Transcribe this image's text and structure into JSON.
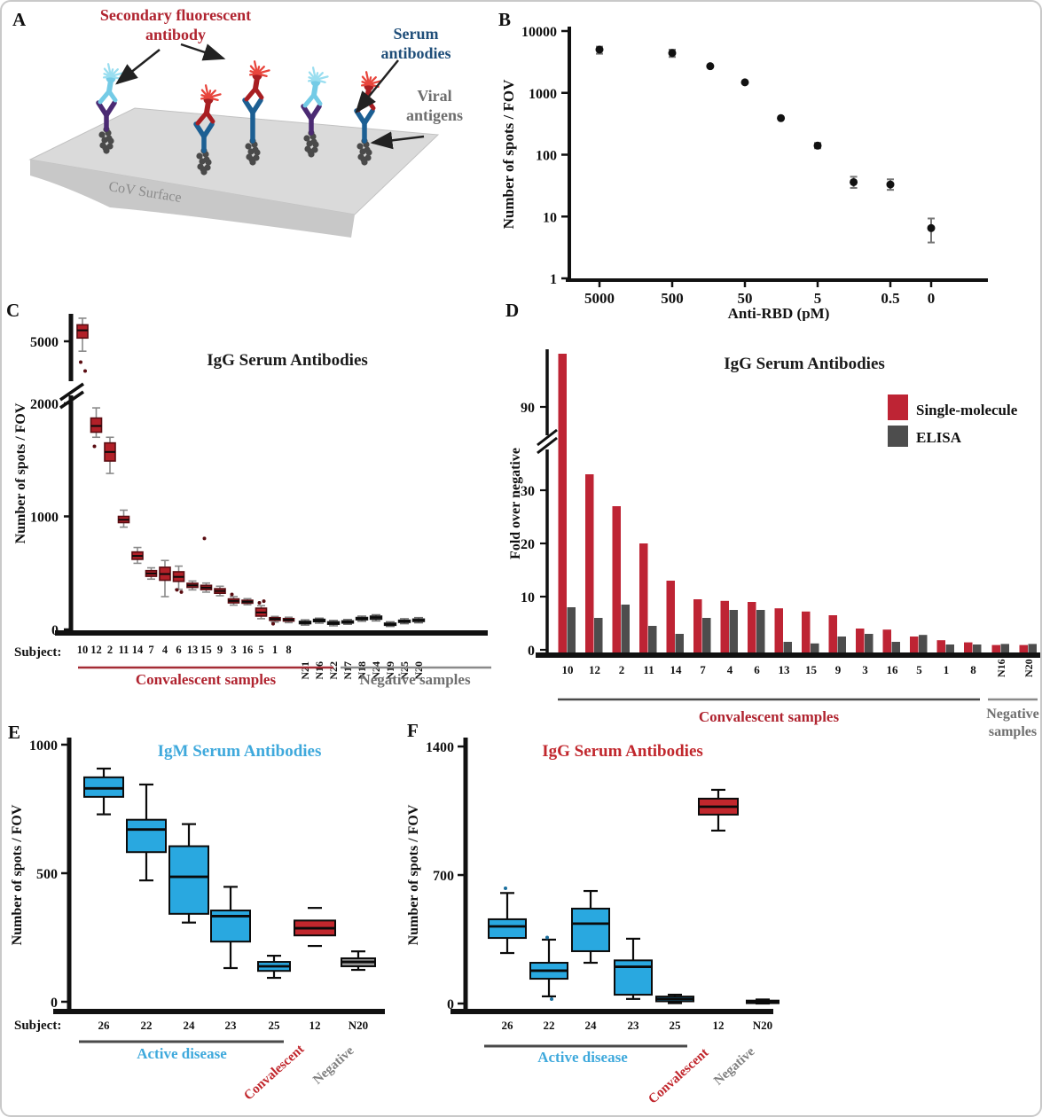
{
  "figure_border_color": "#c9c9c9",
  "panel_labels": {
    "a": "A",
    "b": "B",
    "c": "C",
    "d": "D",
    "e": "E",
    "f": "F"
  },
  "panel_a": {
    "secondary_label_line1": "Secondary fluorescent",
    "secondary_label_line2": "antibody",
    "serum_label_line1": "Serum",
    "serum_label_line2": "antibodies",
    "viral_label_line1": "Viral",
    "viral_label_line2": "antigens",
    "surface_label": "CoV Surface",
    "colors": {
      "secondary_label": "#b02430",
      "serum_label": "#1f4e79",
      "viral_label": "#6e6e6e",
      "surface_label": "#8b8b8b",
      "secondary_red": "#a81e22",
      "star_red": "#e8453c",
      "secondary_cyan": "#74cbe6",
      "star_cyan": "#9adef0",
      "serum_purple": "#4b2a73",
      "serum_blue": "#1c5f93",
      "antigen": "#4a4a4a",
      "surface_top": "#dadada",
      "surface_front": "#c8c8c8",
      "arrow": "#222222"
    }
  },
  "chart_data": [
    {
      "id": "B",
      "type": "scatter",
      "xlabel": "Anti-RBD (pM)",
      "ylabel": "Number of spots / FOV",
      "x_scale": "log-with-zero",
      "y_scale": "log",
      "ylim": [
        1,
        10000
      ],
      "x_ticks": [
        {
          "v": 5000,
          "t": "5000"
        },
        {
          "v": 500,
          "t": "500"
        },
        {
          "v": 50,
          "t": "50"
        },
        {
          "v": 5,
          "t": "5"
        },
        {
          "v": 0.5,
          "t": "0.5"
        },
        {
          "v": 0,
          "t": "0"
        }
      ],
      "y_ticks": [
        {
          "v": 10000,
          "t": "10000"
        },
        {
          "v": 1000,
          "t": "1000"
        },
        {
          "v": 100,
          "t": "100"
        },
        {
          "v": 10,
          "t": "10"
        },
        {
          "v": 1,
          "t": "1"
        }
      ],
      "points": [
        {
          "x": 5000,
          "y": 5000,
          "lo": 4300,
          "hi": 5600
        },
        {
          "x": 500,
          "y": 4400,
          "lo": 3800,
          "hi": 5000
        },
        {
          "x": 150,
          "y": 2700,
          "lo": 2550,
          "hi": 2850
        },
        {
          "x": 50,
          "y": 1480,
          "lo": 1400,
          "hi": 1560
        },
        {
          "x": 16,
          "y": 390,
          "lo": 360,
          "hi": 420
        },
        {
          "x": 5,
          "y": 140,
          "lo": 127,
          "hi": 155
        },
        {
          "x": 1.6,
          "y": 36,
          "lo": 29,
          "hi": 44
        },
        {
          "x": 0.5,
          "y": 33,
          "lo": 27,
          "hi": 40
        },
        {
          "x": 0,
          "y": 6.5,
          "lo": 3.8,
          "hi": 9.3
        }
      ],
      "point_color": "#111111",
      "errorbar_color": "#777777"
    },
    {
      "id": "C",
      "type": "box",
      "title": "IgG Serum Antibodies",
      "title_color": "#1a1a1a",
      "ylabel": "Number of spots / FOV",
      "subject_prefix": "Subject:",
      "axis_break": true,
      "y_ticks": [
        {
          "v": 5000,
          "t": "5000"
        },
        {
          "v": 2000,
          "t": "2000"
        },
        {
          "v": 1000,
          "t": "1000"
        },
        {
          "v": 0,
          "t": "0"
        }
      ],
      "group_labels": [
        {
          "text": "Convalescent samples",
          "color": "#b02430"
        },
        {
          "text": "Negative samples",
          "color": "#6f6f6f"
        }
      ],
      "box_colors": {
        "convalescent": "#b22028",
        "negative": "#3c3c3c"
      },
      "boxes": [
        {
          "s": "10",
          "g": 0,
          "med": 5100,
          "q1": 5030,
          "q3": 5150,
          "lo": 4910,
          "hi": 5210,
          "out": [
            4810,
            4730
          ]
        },
        {
          "s": "12",
          "g": 0,
          "med": 1800,
          "q1": 1745,
          "q3": 1870,
          "lo": 1700,
          "hi": 1960,
          "out": [
            1620
          ]
        },
        {
          "s": "2",
          "g": 0,
          "med": 1570,
          "q1": 1490,
          "q3": 1650,
          "lo": 1380,
          "hi": 1700
        },
        {
          "s": "11",
          "g": 0,
          "med": 970,
          "q1": 945,
          "q3": 1000,
          "lo": 905,
          "hi": 1055
        },
        {
          "s": "14",
          "g": 0,
          "med": 650,
          "q1": 620,
          "q3": 685,
          "lo": 585,
          "hi": 725
        },
        {
          "s": "7",
          "g": 0,
          "med": 495,
          "q1": 470,
          "q3": 520,
          "lo": 445,
          "hi": 545
        },
        {
          "s": "4",
          "g": 0,
          "med": 490,
          "q1": 435,
          "q3": 550,
          "lo": 290,
          "hi": 610
        },
        {
          "s": "6",
          "g": 0,
          "med": 465,
          "q1": 425,
          "q3": 510,
          "lo": 355,
          "hi": 560,
          "out": [
            350,
            330
          ]
        },
        {
          "s": "13",
          "g": 0,
          "med": 390,
          "q1": 372,
          "q3": 408,
          "lo": 350,
          "hi": 428
        },
        {
          "s": "15",
          "g": 0,
          "med": 370,
          "q1": 352,
          "q3": 390,
          "lo": 330,
          "hi": 410,
          "out": [
            805
          ]
        },
        {
          "s": "9",
          "g": 0,
          "med": 340,
          "q1": 320,
          "q3": 360,
          "lo": 298,
          "hi": 382
        },
        {
          "s": "3",
          "g": 0,
          "med": 252,
          "q1": 235,
          "q3": 270,
          "lo": 215,
          "hi": 290,
          "out": [
            310
          ]
        },
        {
          "s": "16",
          "g": 0,
          "med": 245,
          "q1": 232,
          "q3": 258,
          "lo": 218,
          "hi": 272
        },
        {
          "s": "5",
          "g": 0,
          "med": 150,
          "q1": 118,
          "q3": 188,
          "lo": 95,
          "hi": 210,
          "out": [
            235,
            250
          ]
        },
        {
          "s": "1",
          "g": 0,
          "med": 92,
          "q1": 80,
          "q3": 104,
          "lo": 65,
          "hi": 115,
          "out": [
            50
          ]
        },
        {
          "s": "8",
          "g": 0,
          "med": 85,
          "q1": 74,
          "q3": 96,
          "lo": 60,
          "hi": 108
        },
        {
          "s": "N21",
          "g": 1,
          "med": 60,
          "q1": 50,
          "q3": 72,
          "lo": 38,
          "hi": 85
        },
        {
          "s": "N16",
          "g": 1,
          "med": 78,
          "q1": 68,
          "q3": 90,
          "lo": 55,
          "hi": 100
        },
        {
          "s": "N22",
          "g": 1,
          "med": 55,
          "q1": 45,
          "q3": 68,
          "lo": 32,
          "hi": 80
        },
        {
          "s": "N17",
          "g": 1,
          "med": 65,
          "q1": 56,
          "q3": 76,
          "lo": 45,
          "hi": 88
        },
        {
          "s": "N18",
          "g": 1,
          "med": 95,
          "q1": 85,
          "q3": 106,
          "lo": 72,
          "hi": 118
        },
        {
          "s": "N24",
          "g": 1,
          "med": 105,
          "q1": 90,
          "q3": 118,
          "lo": 75,
          "hi": 130
        },
        {
          "s": "N19",
          "g": 1,
          "med": 45,
          "q1": 36,
          "q3": 56,
          "lo": 26,
          "hi": 68
        },
        {
          "s": "N25",
          "g": 1,
          "med": 72,
          "q1": 62,
          "q3": 82,
          "lo": 50,
          "hi": 95
        },
        {
          "s": "N20",
          "g": 1,
          "med": 80,
          "q1": 70,
          "q3": 92,
          "lo": 58,
          "hi": 105
        }
      ]
    },
    {
      "id": "D",
      "type": "bar",
      "title": "IgG Serum Antibodies",
      "title_color": "#1a1a1a",
      "ylabel": "Fold over negative",
      "axis_break": true,
      "y_ticks": [
        {
          "v": 0,
          "t": "0"
        },
        {
          "v": 10,
          "t": "10"
        },
        {
          "v": 20,
          "t": "20"
        },
        {
          "v": 30,
          "t": "30"
        },
        {
          "v": 90,
          "t": "90"
        }
      ],
      "categories": [
        "10",
        "12",
        "2",
        "11",
        "14",
        "7",
        "4",
        "6",
        "13",
        "15",
        "9",
        "3",
        "16",
        "5",
        "1",
        "8",
        "N16",
        "N20"
      ],
      "series": [
        {
          "name": "Single-molecule",
          "color": "#be2434",
          "values": [
            100,
            33,
            27,
            20,
            13,
            9.5,
            9.2,
            9,
            7.8,
            7.2,
            6.5,
            4,
            3.8,
            2.5,
            1.8,
            1.4,
            0.9,
            0.9
          ]
        },
        {
          "name": "ELISA",
          "color": "#4d4d4d",
          "values": [
            8,
            6,
            8.5,
            4.5,
            3,
            6,
            7.5,
            7.5,
            1.5,
            1.2,
            2.5,
            3,
            1.5,
            2.8,
            1,
            1,
            1.1,
            1.1
          ]
        }
      ],
      "legend_position": "upper-right",
      "group_labels": [
        {
          "text": "Convalescent samples",
          "color": "#b02430"
        },
        {
          "text": "Negative",
          "color": "#6f6f6f"
        },
        {
          "text": "samples",
          "color": "#6f6f6f"
        }
      ]
    },
    {
      "id": "E",
      "type": "box",
      "title": "IgM Serum Antibodies",
      "title_color": "#3fa9dc",
      "ylabel": "Number of spots / FOV",
      "subject_prefix": "Subject:",
      "y_ticks": [
        {
          "v": 1000,
          "t": "1000"
        },
        {
          "v": 500,
          "t": "500"
        },
        {
          "v": 0,
          "t": "0"
        }
      ],
      "group_labels": [
        {
          "text": "Active disease",
          "color": "#3fa9dc"
        },
        {
          "text": "Convalescent",
          "color": "#c1272d"
        },
        {
          "text": "Negative",
          "color": "#808080"
        }
      ],
      "box_colors": {
        "blue": "#29a8e0",
        "red": "#c1272d",
        "gray": "#9a9a9a",
        "dark": "#2e2e2e"
      },
      "boxes": [
        {
          "s": "26",
          "color": "blue",
          "med": 830,
          "q1": 797,
          "q3": 873,
          "lo": 729,
          "hi": 907
        },
        {
          "s": "22",
          "color": "blue",
          "med": 670,
          "q1": 582,
          "q3": 708,
          "lo": 472,
          "hi": 845
        },
        {
          "s": "24",
          "color": "blue",
          "med": 486,
          "q1": 342,
          "q3": 605,
          "lo": 308,
          "hi": 691
        },
        {
          "s": "23",
          "color": "blue",
          "med": 333,
          "q1": 234,
          "q3": 355,
          "lo": 131,
          "hi": 447
        },
        {
          "s": "25",
          "color": "blue",
          "med": 138,
          "q1": 120,
          "q3": 155,
          "lo": 93,
          "hi": 179
        },
        {
          "s": "12",
          "color": "red",
          "med": 286,
          "q1": 258,
          "q3": 316,
          "lo": 217,
          "hi": 365,
          "caps_only": true
        },
        {
          "s": "N20",
          "color": "gray",
          "med": 155,
          "q1": 138,
          "q3": 169,
          "lo": 124,
          "hi": 196
        }
      ]
    },
    {
      "id": "F",
      "type": "box",
      "title": "IgG Serum Antibodies",
      "title_color": "#c1272d",
      "ylabel": "Number of spots / FOV",
      "y_ticks": [
        {
          "v": 1400,
          "t": "1400"
        },
        {
          "v": 700,
          "t": "700"
        },
        {
          "v": 0,
          "t": "0"
        }
      ],
      "group_labels": [
        {
          "text": "Active disease",
          "color": "#3fa9dc"
        },
        {
          "text": "Convalescent",
          "color": "#c1272d"
        },
        {
          "text": "Negative",
          "color": "#808080"
        }
      ],
      "box_colors": {
        "blue": "#29a8e0",
        "red": "#c1272d",
        "gray": "#9a9a9a",
        "dark": "#2e2e2e"
      },
      "boxes": [
        {
          "s": "26",
          "color": "blue",
          "med": 420,
          "q1": 357,
          "q3": 459,
          "lo": 275,
          "hi": 602,
          "out": [
            628
          ]
        },
        {
          "s": "22",
          "color": "blue",
          "med": 179,
          "q1": 135,
          "q3": 222,
          "lo": 39,
          "hi": 348,
          "out": [
            360,
            24
          ]
        },
        {
          "s": "24",
          "color": "blue",
          "med": 435,
          "q1": 285,
          "q3": 517,
          "lo": 222,
          "hi": 613
        },
        {
          "s": "23",
          "color": "blue",
          "med": 200,
          "q1": 48,
          "q3": 235,
          "lo": 25,
          "hi": 353
        },
        {
          "s": "25",
          "color": "blue",
          "med": 25,
          "q1": 12,
          "q3": 38,
          "lo": 2,
          "hi": 48
        },
        {
          "s": "12",
          "color": "red",
          "med": 1072,
          "q1": 1029,
          "q3": 1116,
          "lo": 942,
          "hi": 1164
        },
        {
          "s": "N20",
          "color": "dark",
          "med": 8,
          "q1": 2,
          "q3": 16,
          "lo": 0,
          "hi": 22
        }
      ]
    }
  ]
}
